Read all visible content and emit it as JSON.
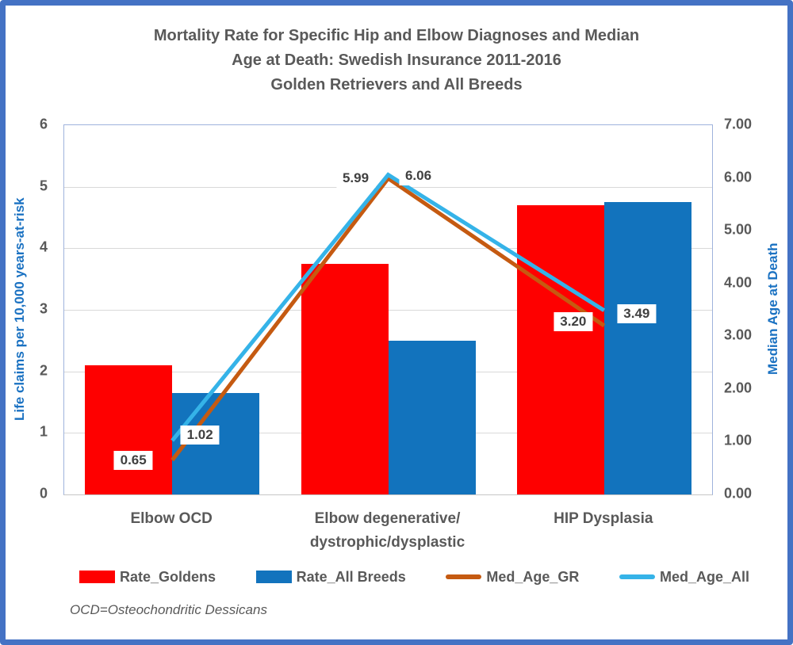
{
  "title": {
    "lines": [
      "Mortality Rate for Specific Hip and Elbow Diagnoses and Median",
      "Age at Death: Swedish Insurance 2011-2016",
      "Golden Retrievers and All Breeds"
    ]
  },
  "footnote": "OCD=Osteochondritic Dessicans",
  "colors": {
    "frame": "#4472C4",
    "title_text": "#595959",
    "axis_title_text": "#1B72C2",
    "tick_text": "#595959",
    "gridline": "#D9D9D9",
    "plot_border": "#9FB3DC",
    "rate_goldens_red": "#FE0000",
    "rate_all_breeds_blue": "#1273BD",
    "med_age_gr_orange": "#C55A11",
    "med_age_all_cyan": "#35B3E8",
    "data_label_text": "#404040",
    "data_label_bg": "#FFFFFF"
  },
  "chart_data": {
    "type": "combo bar + line (dual axis)",
    "categories": [
      "Elbow OCD",
      "Elbow degenerative/\ndystrophic/dysplastic",
      "HIP Dysplasia"
    ],
    "bar_series": [
      {
        "name": "Rate_Goldens",
        "axis": "left",
        "color": "#FE0000",
        "values": [
          2.1,
          3.75,
          4.7
        ]
      },
      {
        "name": "Rate_All Breeds",
        "axis": "left",
        "color": "#1273BD",
        "values": [
          1.65,
          2.5,
          4.75
        ]
      }
    ],
    "line_series": [
      {
        "name": "Med_Age_GR",
        "axis": "right",
        "color": "#C55A11",
        "values": [
          0.65,
          5.99,
          3.2
        ],
        "labels": [
          "0.65",
          "5.99",
          "3.20"
        ]
      },
      {
        "name": "Med_Age_All",
        "axis": "right",
        "color": "#35B3E8",
        "values": [
          1.02,
          6.06,
          3.49
        ],
        "labels": [
          "1.02",
          "6.06",
          "3.49"
        ]
      }
    ],
    "left_axis": {
      "title": "Life claims per 10,000 years-at-risk",
      "min": 0,
      "max": 6,
      "ticks": [
        "6",
        "5",
        "4",
        "3",
        "2",
        "1",
        "0"
      ]
    },
    "right_axis": {
      "title": "Median Age at Death",
      "min": 0,
      "max": 7,
      "ticks": [
        "7.00",
        "6.00",
        "5.00",
        "4.00",
        "3.00",
        "2.00",
        "1.00",
        "0.00"
      ]
    },
    "grid": "horizontal gridlines at left-axis integers 1-5",
    "legend_position": "bottom"
  },
  "legend": {
    "items": [
      {
        "label": "Rate_Goldens",
        "swatch": "bar",
        "color": "#FE0000"
      },
      {
        "label": "Rate_All Breeds",
        "swatch": "bar",
        "color": "#1273BD"
      },
      {
        "label": "Med_Age_GR",
        "swatch": "line",
        "color": "#C55A11"
      },
      {
        "label": "Med_Age_All",
        "swatch": "line",
        "color": "#35B3E8"
      }
    ]
  }
}
